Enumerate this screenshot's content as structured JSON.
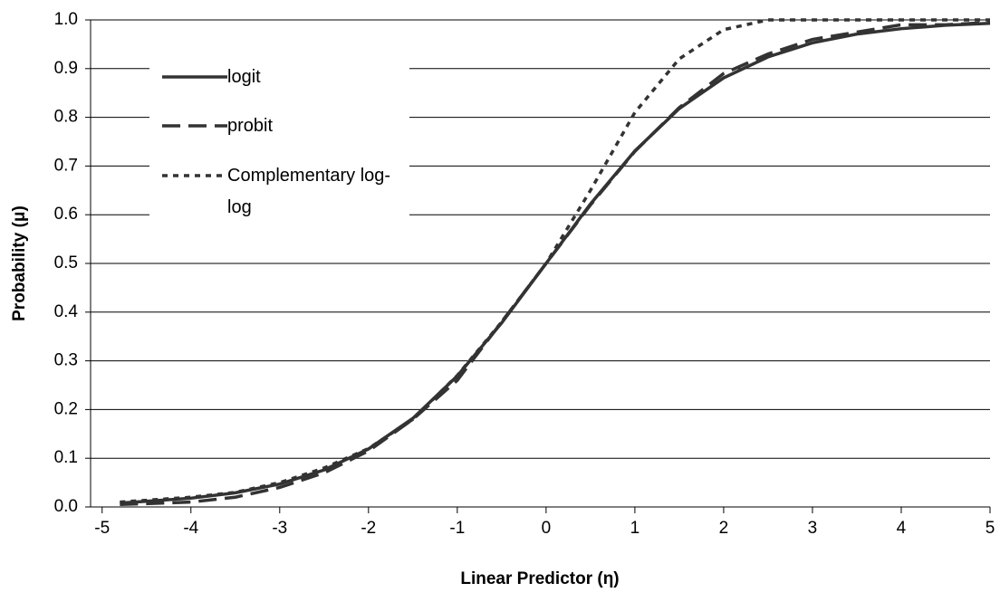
{
  "chart_data": {
    "type": "line",
    "xlabel": "Linear Predictor (η)",
    "ylabel": "Probability (μ)",
    "x": [
      -4.8,
      -4,
      -3.5,
      -3,
      -2.5,
      -2,
      -1.5,
      -1,
      -0.5,
      0,
      0.5,
      1,
      1.5,
      2,
      2.5,
      3,
      3.5,
      4,
      4.5,
      5
    ],
    "series": [
      {
        "name": "logit",
        "color": "#333333",
        "dash": "solid",
        "values": [
          0.008,
          0.018,
          0.029,
          0.047,
          0.076,
          0.119,
          0.182,
          0.269,
          0.378,
          0.5,
          0.622,
          0.731,
          0.818,
          0.881,
          0.924,
          0.953,
          0.971,
          0.982,
          0.989,
          0.993
        ]
      },
      {
        "name": "probit",
        "color": "#333333",
        "dash": "long",
        "values": [
          0.005,
          0.01,
          0.02,
          0.04,
          0.07,
          0.115,
          0.18,
          0.26,
          0.38,
          0.5,
          0.62,
          0.73,
          0.82,
          0.89,
          0.93,
          0.96,
          0.975,
          0.99,
          0.99,
          0.995
        ]
      },
      {
        "name": "Complementary log-log",
        "color": "#333333",
        "dash": "short",
        "values": [
          0.01,
          0.02,
          0.03,
          0.05,
          0.08,
          0.12,
          0.18,
          0.27,
          0.38,
          0.5,
          0.65,
          0.81,
          0.92,
          0.98,
          1.0,
          1.0,
          1.0,
          1.0,
          1.0,
          1.0
        ]
      }
    ],
    "xlim": [
      -5.13,
      5
    ],
    "xticks": [
      -5,
      -4,
      -3,
      -2,
      -1,
      0,
      1,
      2,
      3,
      4,
      5
    ],
    "ylim": [
      0,
      1
    ],
    "yticks": [
      {
        "value": 0,
        "label": "0.0"
      },
      {
        "value": 0.1,
        "label": "0.1"
      },
      {
        "value": 0.2,
        "label": "0.2"
      },
      {
        "value": 0.3,
        "label": "0.3"
      },
      {
        "value": 0.4,
        "label": "0.4"
      },
      {
        "value": 0.5,
        "label": "0.5"
      },
      {
        "value": 0.6,
        "label": "0.6"
      },
      {
        "value": 0.7,
        "label": "0.7"
      },
      {
        "value": 0.8,
        "label": "0.8"
      },
      {
        "value": 0.9,
        "label": "0.9"
      },
      {
        "value": 1,
        "label": "1.0"
      }
    ],
    "grid": true,
    "legend": "upper-left"
  }
}
